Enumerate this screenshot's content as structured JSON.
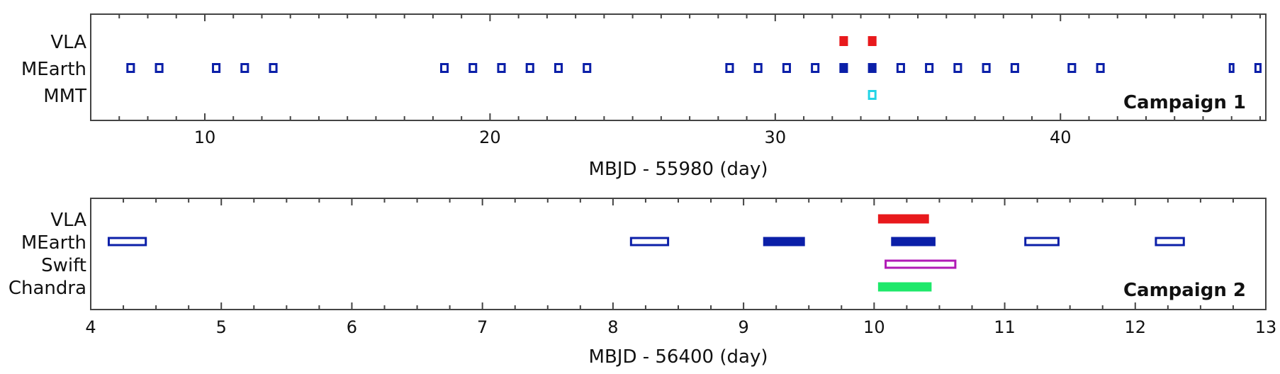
{
  "chart_data": [
    {
      "type": "timeline",
      "xlabel": "MBJD - 55980 (day)",
      "xlim": [
        6,
        47.2
      ],
      "xticks": [
        10,
        20,
        30,
        40
      ],
      "minor_step": 1,
      "annotation": "Campaign 1",
      "rows": [
        "VLA",
        "MEarth",
        "MMT"
      ],
      "observations": [
        {
          "row": "VLA",
          "start": 32.25,
          "end": 32.55,
          "fill": true,
          "color": "#e8191c"
        },
        {
          "row": "VLA",
          "start": 33.25,
          "end": 33.55,
          "fill": true,
          "color": "#e8191c"
        },
        {
          "row": "MEarth",
          "start": 7.25,
          "end": 7.55,
          "fill": false,
          "color": "#0b1fa8"
        },
        {
          "row": "MEarth",
          "start": 8.25,
          "end": 8.55,
          "fill": false,
          "color": "#0b1fa8"
        },
        {
          "row": "MEarth",
          "start": 10.25,
          "end": 10.55,
          "fill": false,
          "color": "#0b1fa8"
        },
        {
          "row": "MEarth",
          "start": 11.25,
          "end": 11.55,
          "fill": false,
          "color": "#0b1fa8"
        },
        {
          "row": "MEarth",
          "start": 12.25,
          "end": 12.55,
          "fill": false,
          "color": "#0b1fa8"
        },
        {
          "row": "MEarth",
          "start": 18.25,
          "end": 18.55,
          "fill": false,
          "color": "#0b1fa8"
        },
        {
          "row": "MEarth",
          "start": 19.25,
          "end": 19.55,
          "fill": false,
          "color": "#0b1fa8"
        },
        {
          "row": "MEarth",
          "start": 20.25,
          "end": 20.55,
          "fill": false,
          "color": "#0b1fa8"
        },
        {
          "row": "MEarth",
          "start": 21.25,
          "end": 21.55,
          "fill": false,
          "color": "#0b1fa8"
        },
        {
          "row": "MEarth",
          "start": 22.25,
          "end": 22.55,
          "fill": false,
          "color": "#0b1fa8"
        },
        {
          "row": "MEarth",
          "start": 23.25,
          "end": 23.55,
          "fill": false,
          "color": "#0b1fa8"
        },
        {
          "row": "MEarth",
          "start": 28.25,
          "end": 28.55,
          "fill": false,
          "color": "#0b1fa8"
        },
        {
          "row": "MEarth",
          "start": 29.25,
          "end": 29.55,
          "fill": false,
          "color": "#0b1fa8"
        },
        {
          "row": "MEarth",
          "start": 30.25,
          "end": 30.55,
          "fill": false,
          "color": "#0b1fa8"
        },
        {
          "row": "MEarth",
          "start": 31.25,
          "end": 31.55,
          "fill": false,
          "color": "#0b1fa8"
        },
        {
          "row": "MEarth",
          "start": 32.25,
          "end": 32.55,
          "fill": true,
          "color": "#0b1fa8"
        },
        {
          "row": "MEarth",
          "start": 33.25,
          "end": 33.55,
          "fill": true,
          "color": "#0b1fa8"
        },
        {
          "row": "MEarth",
          "start": 34.25,
          "end": 34.55,
          "fill": false,
          "color": "#0b1fa8"
        },
        {
          "row": "MEarth",
          "start": 35.25,
          "end": 35.55,
          "fill": false,
          "color": "#0b1fa8"
        },
        {
          "row": "MEarth",
          "start": 36.25,
          "end": 36.55,
          "fill": false,
          "color": "#0b1fa8"
        },
        {
          "row": "MEarth",
          "start": 37.25,
          "end": 37.55,
          "fill": false,
          "color": "#0b1fa8"
        },
        {
          "row": "MEarth",
          "start": 38.25,
          "end": 38.55,
          "fill": false,
          "color": "#0b1fa8"
        },
        {
          "row": "MEarth",
          "start": 40.25,
          "end": 40.55,
          "fill": false,
          "color": "#0b1fa8"
        },
        {
          "row": "MEarth",
          "start": 41.25,
          "end": 41.55,
          "fill": false,
          "color": "#0b1fa8"
        },
        {
          "row": "MEarth",
          "start": 45.9,
          "end": 46.1,
          "fill": false,
          "color": "#0b1fa8"
        },
        {
          "row": "MEarth",
          "start": 46.8,
          "end": 47.05,
          "fill": false,
          "color": "#0b1fa8"
        },
        {
          "row": "MMT",
          "start": 33.25,
          "end": 33.55,
          "fill": false,
          "color": "#22d4e6"
        }
      ]
    },
    {
      "type": "timeline",
      "xlabel": "MBJD - 56400 (day)",
      "xlim": [
        4,
        13
      ],
      "xticks": [
        4,
        5,
        6,
        7,
        8,
        9,
        10,
        11,
        12,
        13
      ],
      "minor_step": 0.25,
      "annotation": "Campaign 2",
      "rows": [
        "VLA",
        "MEarth",
        "Swift",
        "Chandra"
      ],
      "observations": [
        {
          "row": "VLA",
          "start": 10.03,
          "end": 10.42,
          "fill": true,
          "color": "#e8191c"
        },
        {
          "row": "MEarth",
          "start": 4.13,
          "end": 4.43,
          "fill": false,
          "color": "#0b1fa8"
        },
        {
          "row": "MEarth",
          "start": 8.13,
          "end": 8.43,
          "fill": false,
          "color": "#0b1fa8"
        },
        {
          "row": "MEarth",
          "start": 9.15,
          "end": 9.47,
          "fill": true,
          "color": "#0b1fa8"
        },
        {
          "row": "MEarth",
          "start": 10.13,
          "end": 10.47,
          "fill": true,
          "color": "#0b1fa8"
        },
        {
          "row": "MEarth",
          "start": 11.15,
          "end": 11.42,
          "fill": false,
          "color": "#0b1fa8"
        },
        {
          "row": "MEarth",
          "start": 12.15,
          "end": 12.38,
          "fill": false,
          "color": "#0b1fa8"
        },
        {
          "row": "Swift",
          "start": 10.08,
          "end": 10.63,
          "fill": false,
          "color": "#b01ab5"
        },
        {
          "row": "Chandra",
          "start": 10.03,
          "end": 10.44,
          "fill": true,
          "color": "#1ee86a"
        }
      ]
    }
  ]
}
